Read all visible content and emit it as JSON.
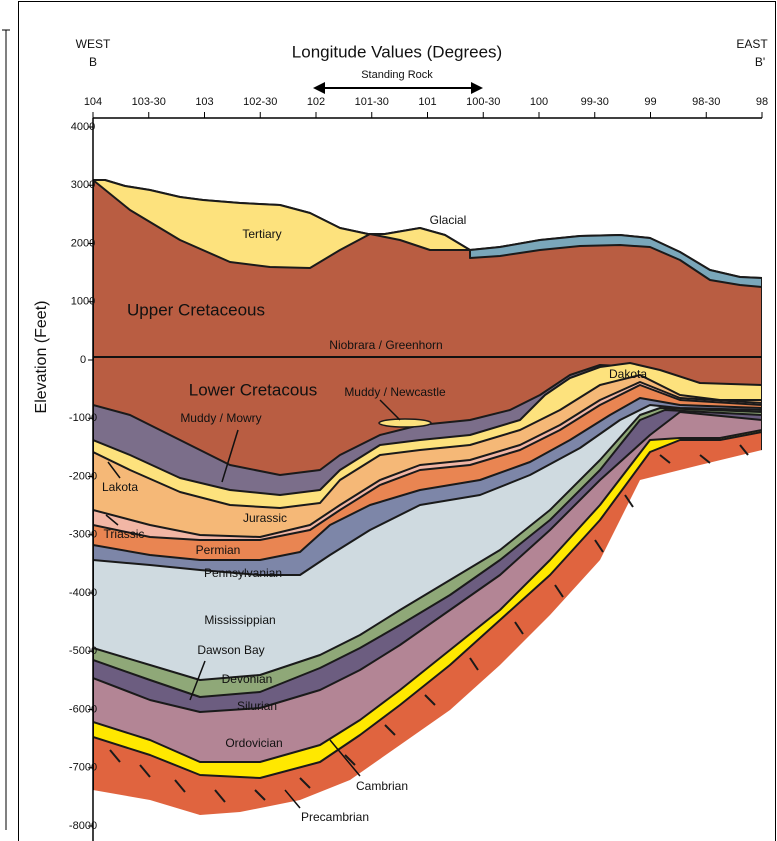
{
  "header": {
    "west": "WEST",
    "west_section": "B",
    "east": "EAST",
    "east_section": "B'",
    "title": "Longitude Values (Degrees)",
    "annotation": "Standing Rock"
  },
  "x_axis": {
    "ticks": [
      "104",
      "103-30",
      "103",
      "102-30",
      "102",
      "101-30",
      "101",
      "100-30",
      "100",
      "99-30",
      "99",
      "98-30",
      "98"
    ]
  },
  "y_axis": {
    "label": "Elevation (Feet)",
    "ticks": [
      "4000",
      "3000",
      "2000",
      "1000",
      "0",
      "-1000",
      "-2000",
      "-3000",
      "-4000",
      "-5000",
      "-6000",
      "-7000",
      "-8000"
    ]
  },
  "layers": [
    {
      "label": "Tertiary"
    },
    {
      "label": "Glacial"
    },
    {
      "label": "Upper Cretaceous"
    },
    {
      "label": "Niobrara / Greenhorn"
    },
    {
      "label": "Muddy / Newcastle"
    },
    {
      "label": "Dakota"
    },
    {
      "label": "Lower Cretacous"
    },
    {
      "label": "Muddy / Mowry"
    },
    {
      "label": "Lakota"
    },
    {
      "label": "Jurassic"
    },
    {
      "label": "Triassic"
    },
    {
      "label": "Permian"
    },
    {
      "label": "Pennsylvanian"
    },
    {
      "label": "Mississippian"
    },
    {
      "label": "Dawson Bay"
    },
    {
      "label": "Devonian"
    },
    {
      "label": "Silurian"
    },
    {
      "label": "Ordovician"
    },
    {
      "label": "Cambrian"
    },
    {
      "label": "Precambrian"
    }
  ]
}
